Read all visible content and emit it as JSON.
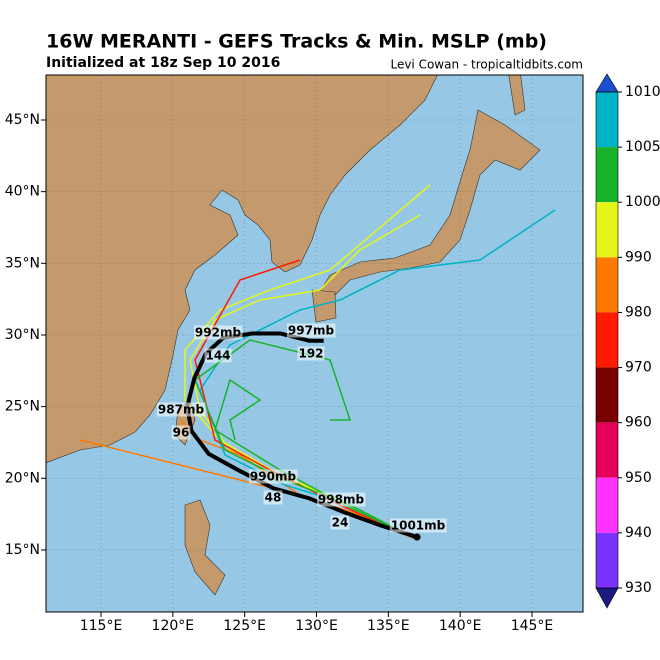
{
  "header": {
    "title": "16W MERANTI - GEFS Tracks & Min. MSLP (mb)",
    "subtitle": "Initialized at 18z Sep 10 2016",
    "credit": "Levi Cowan - tropicaltidbits.com"
  },
  "map": {
    "xlim": [
      111.17,
      148.55
    ],
    "ylim": [
      10.67,
      48.14
    ],
    "xticks": [
      {
        "value": 115,
        "label": "115°E"
      },
      {
        "value": 120,
        "label": "120°E"
      },
      {
        "value": 125,
        "label": "125°E"
      },
      {
        "value": 130,
        "label": "130°E"
      },
      {
        "value": 135,
        "label": "135°E"
      },
      {
        "value": 140,
        "label": "140°E"
      },
      {
        "value": 145,
        "label": "145°E"
      }
    ],
    "yticks": [
      {
        "value": 15,
        "label": "15°N"
      },
      {
        "value": 20,
        "label": "20°N"
      },
      {
        "value": 25,
        "label": "25°N"
      },
      {
        "value": 30,
        "label": "30°N"
      },
      {
        "value": 35,
        "label": "35°N"
      },
      {
        "value": 40,
        "label": "40°N"
      },
      {
        "value": 45,
        "label": "45°N"
      }
    ],
    "mean_track": {
      "lon": [
        137,
        134.5,
        132,
        129.5,
        127,
        124.5,
        122.5,
        121.3,
        121,
        121.5,
        122.3,
        123.5,
        125.5,
        127.5,
        129.5,
        130.5
      ],
      "lat": [
        15.9,
        16.7,
        17.6,
        18.6,
        19.3,
        20.6,
        21.7,
        23.3,
        25,
        27,
        28.7,
        29.8,
        30.1,
        30.1,
        29.6,
        29.6
      ]
    },
    "labels": [
      "1001mb",
      "24",
      "998mb",
      "48",
      "990mb",
      "96",
      "987mb",
      "144",
      "992mb",
      "192",
      "997mb"
    ]
  },
  "colorbar": {
    "ticks": [
      1010,
      1005,
      1000,
      990,
      980,
      970,
      960,
      950,
      940,
      930
    ],
    "colors": [
      "#00b3c6",
      "#18b32a",
      "#e5f51a",
      "#ff7a00",
      "#ff1a00",
      "#780000",
      "#e6005c",
      "#ff33ff",
      "#7a33ff"
    ],
    "extend_colors": [
      "#1a4fd0",
      "#1a1a80"
    ]
  }
}
